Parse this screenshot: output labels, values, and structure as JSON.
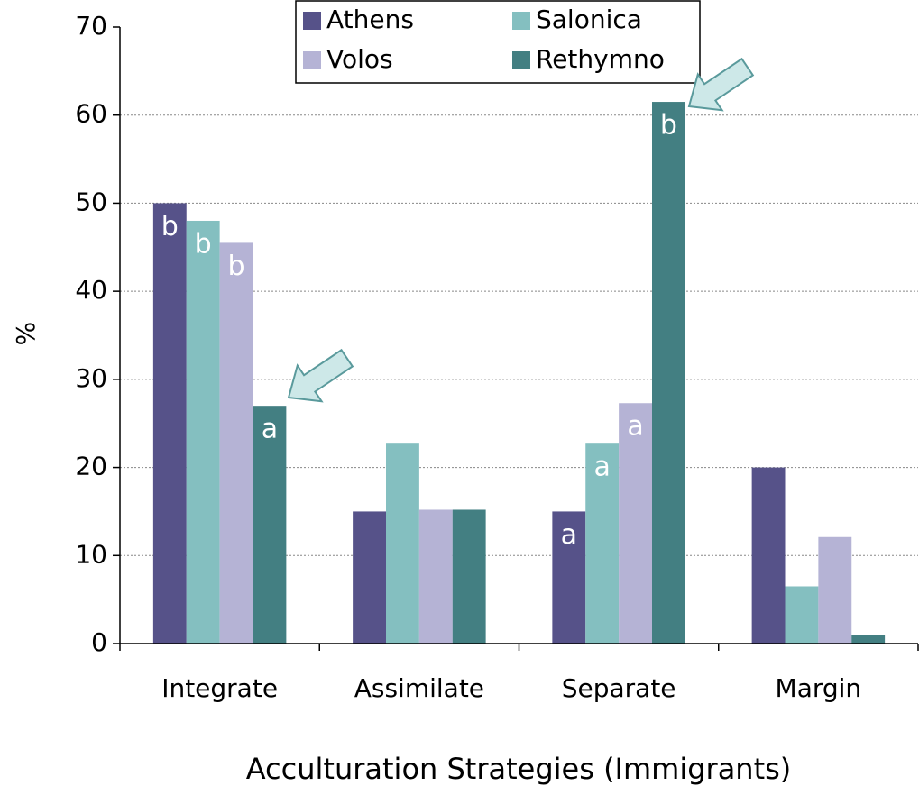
{
  "chart_data": {
    "type": "bar",
    "x_label": "Acculturation Strategies (Immigrants)",
    "y_label": "%",
    "categories": [
      "Integrate",
      "Assimilate",
      "Separate",
      "Margin"
    ],
    "series": [
      {
        "name": "Athens",
        "color": "#565289",
        "values": [
          50,
          15,
          15,
          20
        ],
        "letters": [
          "b",
          null,
          "a",
          null
        ]
      },
      {
        "name": "Salonica",
        "color": "#84bfc0",
        "values": [
          48,
          22.7,
          22.7,
          6.5
        ],
        "letters": [
          "b",
          null,
          "a",
          null
        ]
      },
      {
        "name": "Volos",
        "color": "#b5b3d5",
        "values": [
          45.5,
          15.2,
          27.3,
          12.1
        ],
        "letters": [
          "b",
          null,
          "a",
          null
        ]
      },
      {
        "name": "Rethymno",
        "color": "#437f82",
        "values": [
          27,
          15.2,
          61.5,
          1
        ],
        "letters": [
          "a",
          null,
          "b",
          null
        ]
      }
    ],
    "ylim": [
      0,
      70
    ],
    "yticks": [
      0,
      10,
      20,
      30,
      40,
      50,
      60,
      70
    ],
    "grid": true
  }
}
